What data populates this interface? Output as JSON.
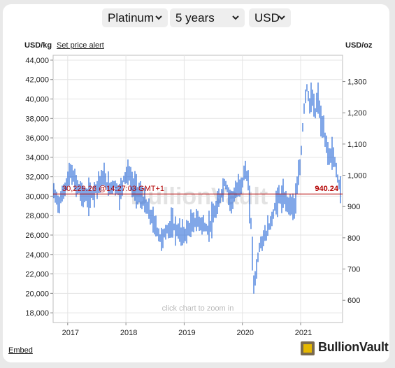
{
  "selectors": {
    "metal": "Platinum",
    "period": "5 years",
    "currency": "USD"
  },
  "left_axis_title": "USD/kg",
  "right_axis_title": "USD/oz",
  "set_alert_label": "Set price alert",
  "current_price_label": "30,229.26 @14:27:03 GMT+1",
  "current_price_oz": "940.24",
  "zoom_hint": "click chart to zoom in",
  "watermark": "BullionVault",
  "embed_label": "Embed",
  "brand_name": "BullionVault",
  "colors": {
    "candle": "#1a5fd6",
    "price_line": "#b30000",
    "grid": "#e4e4e4"
  },
  "chart_data": {
    "type": "line",
    "title": "",
    "x_ticks": [
      "2017",
      "2018",
      "2019",
      "2020",
      "2021"
    ],
    "x_range": [
      2016.75,
      2021.72
    ],
    "y_left": {
      "label": "USD/kg",
      "range": [
        17000,
        44500
      ],
      "ticks": [
        18000,
        20000,
        22000,
        24000,
        26000,
        28000,
        30000,
        32000,
        34000,
        36000,
        38000,
        40000,
        42000,
        44000
      ]
    },
    "y_right": {
      "label": "USD/oz",
      "range": [
        528.8,
        1384.1
      ],
      "ticks": [
        600,
        700,
        800,
        900,
        1000,
        1100,
        1200,
        1300
      ]
    },
    "current_price_kg": 30229.26,
    "series": [
      {
        "x": [
          2016.75,
          2016.85,
          2016.95,
          2017.05,
          2017.15,
          2017.25,
          2017.35,
          2017.45,
          2017.55,
          2017.62,
          2017.7,
          2017.8,
          2017.9,
          2017.97,
          2018.05,
          2018.1,
          2018.2,
          2018.3,
          2018.4,
          2018.5,
          2018.6,
          2018.7,
          2018.8,
          2018.9,
          2019.0,
          2019.1,
          2019.2,
          2019.3,
          2019.4,
          2019.5,
          2019.6,
          2019.7,
          2019.8,
          2019.9,
          2020.0,
          2020.05,
          2020.1,
          2020.15,
          2020.2,
          2020.25,
          2020.3,
          2020.4,
          2020.5,
          2020.6,
          2020.7,
          2020.8,
          2020.9,
          2021.0,
          2021.05,
          2021.1,
          2021.15,
          2021.2,
          2021.25,
          2021.3,
          2021.35,
          2021.4,
          2021.45,
          2021.5,
          2021.55,
          2021.6,
          2021.65,
          2021.7
        ],
        "y": [
          30500,
          29200,
          30800,
          32500,
          31200,
          30200,
          29800,
          30500,
          31500,
          32000,
          30800,
          31200,
          30200,
          32000,
          32500,
          31200,
          30500,
          29500,
          28300,
          27000,
          25500,
          26500,
          27000,
          26300,
          26000,
          26800,
          27500,
          27200,
          26500,
          27800,
          29500,
          31500,
          29500,
          30500,
          31500,
          32800,
          31200,
          27000,
          20500,
          23000,
          25000,
          26000,
          27500,
          29800,
          29800,
          29200,
          29000,
          33500,
          38500,
          41500,
          39500,
          40000,
          38500,
          40200,
          37500,
          36500,
          35000,
          34000,
          34500,
          33000,
          31500,
          30229
        ]
      }
    ]
  }
}
